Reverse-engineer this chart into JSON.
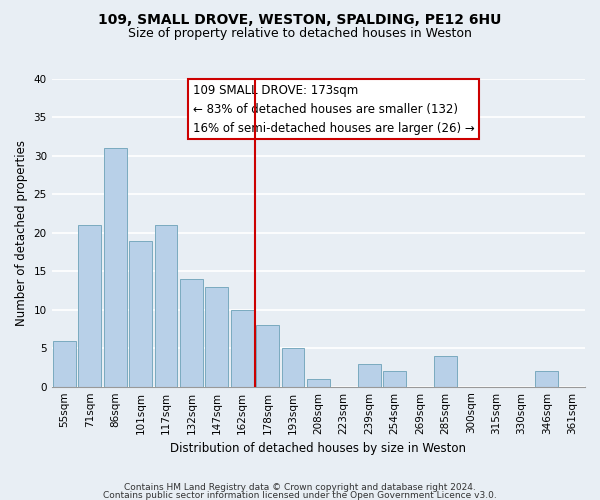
{
  "title": "109, SMALL DROVE, WESTON, SPALDING, PE12 6HU",
  "subtitle": "Size of property relative to detached houses in Weston",
  "xlabel": "Distribution of detached houses by size in Weston",
  "ylabel": "Number of detached properties",
  "categories": [
    "55sqm",
    "71sqm",
    "86sqm",
    "101sqm",
    "117sqm",
    "132sqm",
    "147sqm",
    "162sqm",
    "178sqm",
    "193sqm",
    "208sqm",
    "223sqm",
    "239sqm",
    "254sqm",
    "269sqm",
    "285sqm",
    "300sqm",
    "315sqm",
    "330sqm",
    "346sqm",
    "361sqm"
  ],
  "values": [
    6,
    21,
    31,
    19,
    21,
    14,
    13,
    10,
    8,
    5,
    1,
    0,
    3,
    2,
    0,
    4,
    0,
    0,
    0,
    2,
    0
  ],
  "bar_color": "#b8d0e8",
  "bar_edge_color": "#7aaabf",
  "vline_x_index": 8,
  "vline_color": "#cc0000",
  "ylim": [
    0,
    40
  ],
  "yticks": [
    0,
    5,
    10,
    15,
    20,
    25,
    30,
    35,
    40
  ],
  "annotation_title": "109 SMALL DROVE: 173sqm",
  "annotation_line1": "← 83% of detached houses are smaller (132)",
  "annotation_line2": "16% of semi-detached houses are larger (26) →",
  "annotation_box_facecolor": "#ffffff",
  "annotation_box_edgecolor": "#cc0000",
  "footer1": "Contains HM Land Registry data © Crown copyright and database right 2024.",
  "footer2": "Contains public sector information licensed under the Open Government Licence v3.0.",
  "background_color": "#e8eef4",
  "grid_color": "#ffffff",
  "title_fontsize": 10,
  "subtitle_fontsize": 9,
  "axis_label_fontsize": 8.5,
  "tick_fontsize": 7.5,
  "annotation_fontsize": 8.5,
  "footer_fontsize": 6.5
}
